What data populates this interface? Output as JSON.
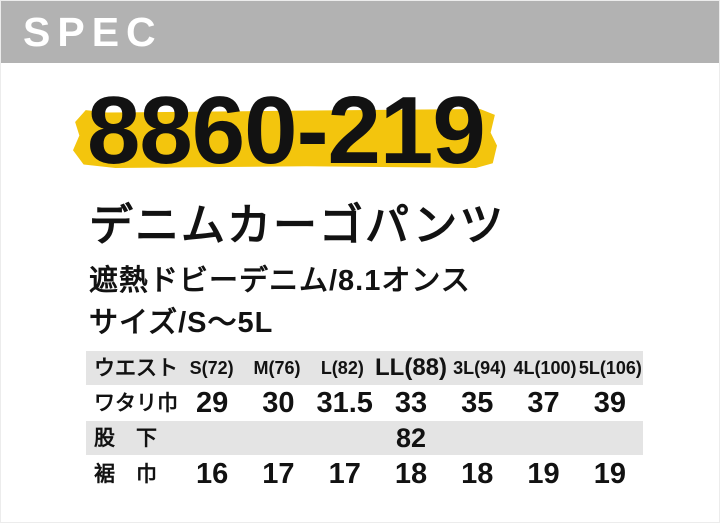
{
  "banner": {
    "label": "SPEC",
    "bg": "#b2b2b2",
    "text_color": "#ffffff"
  },
  "product": {
    "code": "8860-219",
    "code_highlight_color": "#f3c50d",
    "name": "デニムカーゴパンツ",
    "material": "遮熱ドビーデニム/8.1オンス",
    "size_range": "サイズ/S〜5L"
  },
  "spec_table": {
    "header_bg": "#e4e4e4",
    "columns": [
      "ウエスト",
      "S(72)",
      "M(76)",
      "L(82)",
      "LL(88)",
      "3L(94)",
      "4L(100)",
      "5L(106)"
    ],
    "rows": [
      {
        "label": "ワタリ巾",
        "values": [
          "29",
          "30",
          "31.5",
          "33",
          "35",
          "37",
          "39"
        ]
      },
      {
        "label": "股　下",
        "values": [
          "",
          "",
          "",
          "82",
          "",
          "",
          ""
        ]
      },
      {
        "label": "裾　巾",
        "values": [
          "16",
          "17",
          "17",
          "18",
          "18",
          "19",
          "19"
        ]
      }
    ]
  },
  "chart_data": {
    "type": "table",
    "columns": [
      "ウエスト",
      "S(72)",
      "M(76)",
      "L(82)",
      "LL(88)",
      "3L(94)",
      "4L(100)",
      "5L(106)"
    ],
    "rows": [
      [
        "ワタリ巾",
        29,
        30,
        31.5,
        33,
        35,
        37,
        39
      ],
      [
        "股下",
        null,
        null,
        null,
        82,
        null,
        null,
        null
      ],
      [
        "裾巾",
        16,
        17,
        17,
        18,
        18,
        19,
        19
      ]
    ]
  }
}
